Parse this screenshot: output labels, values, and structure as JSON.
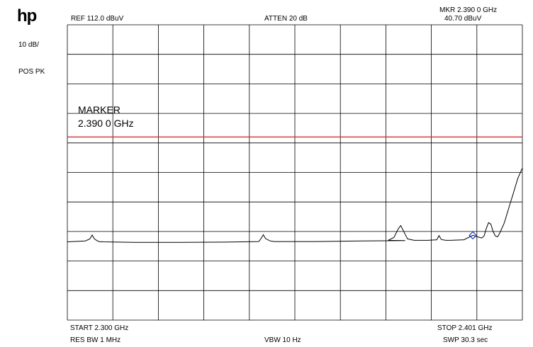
{
  "header": {
    "logo": "hp",
    "scale": "10 dB/",
    "detector": "POS PK",
    "reference": "REF  112.0 dBuV",
    "attenuation": "ATTEN 20 dB",
    "marker_freq": "MKR 2.390 0 GHz",
    "marker_level": "40.70 dBuV"
  },
  "footer": {
    "start": "START 2.300 GHz",
    "stop": "STOP 2.401 GHz",
    "rbw": "RES BW 1 MHz",
    "vbw": "VBW 10  Hz",
    "sweep": "SWP 30.3  sec"
  },
  "colors": {
    "grid": "#000000",
    "trace": "#000000",
    "limit_line": "#d32f2f",
    "marker": "#1f3fbf"
  },
  "chart_data": {
    "type": "line",
    "x_unit": "GHz",
    "y_unit": "dBuV",
    "xlim": [
      2.3,
      2.401
    ],
    "ylim": [
      12.0,
      112.0
    ],
    "grid": true,
    "limit_line": 74.0,
    "marker": {
      "x": 2.39,
      "y": 40.7
    },
    "annotation": [
      "MARKER",
      "2.390 0 GHz"
    ],
    "series": [
      {
        "x": [
          2.3,
          2.304,
          2.305,
          2.3055,
          2.306,
          2.3065,
          2.307,
          2.308,
          2.315,
          2.325,
          2.335,
          2.3425,
          2.343,
          2.3435,
          2.344,
          2.345,
          2.346,
          2.355,
          2.365,
          2.375,
          2.3712,
          2.3725,
          2.3735,
          2.374,
          2.3745,
          2.3755,
          2.377,
          2.38,
          2.382,
          2.3825,
          2.383,
          2.384,
          2.385,
          2.388,
          2.39,
          2.391,
          2.392,
          2.3925,
          2.393,
          2.3935,
          2.394,
          2.3945,
          2.395,
          2.3955,
          2.396,
          2.397,
          2.398,
          2.399,
          2.4,
          2.401
        ],
        "y": [
          38.5,
          38.8,
          39.5,
          40.8,
          39.5,
          39.0,
          38.6,
          38.5,
          38.3,
          38.3,
          38.4,
          38.6,
          39.6,
          40.9,
          39.6,
          38.8,
          38.6,
          38.6,
          38.8,
          38.9,
          39.0,
          40.0,
          43.0,
          44.0,
          42.5,
          39.5,
          39.0,
          39.0,
          39.2,
          40.6,
          39.3,
          39.0,
          39.0,
          39.2,
          40.7,
          40.2,
          39.8,
          40.5,
          43.0,
          45.0,
          44.5,
          42.0,
          40.5,
          40.2,
          41.5,
          45.0,
          50.0,
          55.0,
          60.0,
          63.5
        ]
      }
    ]
  }
}
